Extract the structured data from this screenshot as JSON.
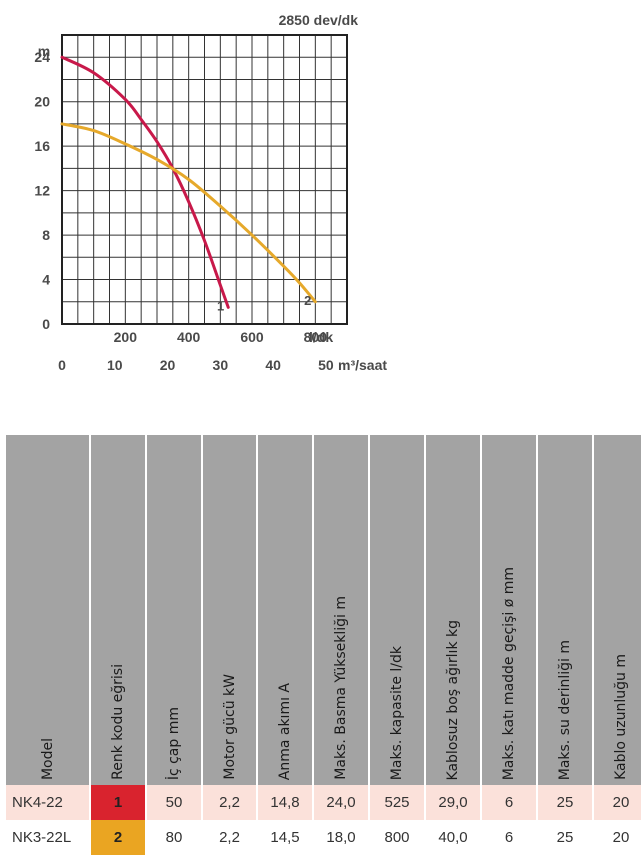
{
  "chart_data": {
    "type": "line",
    "title": "2850 dev/dk",
    "ylabel": "m",
    "xlabel_primary": "l/dk",
    "xlabel_secondary": "m³/saat",
    "ylim": [
      0,
      26
    ],
    "xlim": [
      0,
      900
    ],
    "yticks": [
      "0",
      "4",
      "8",
      "12",
      "16",
      "20",
      "24"
    ],
    "xticks_primary": [
      "200",
      "400",
      "600",
      "800"
    ],
    "xticks_secondary": [
      "0",
      "10",
      "20",
      "30",
      "40",
      "50"
    ],
    "grid": true,
    "series": [
      {
        "name": "1",
        "color": "#c8194a",
        "x": [
          0,
          100,
          200,
          250,
          300,
          350,
          400,
          450,
          500,
          525
        ],
        "y": [
          24.0,
          22.6,
          20.2,
          18.4,
          16.4,
          14.0,
          11.0,
          7.5,
          3.5,
          1.5
        ]
      },
      {
        "name": "2",
        "color": "#e6a92b",
        "x": [
          0,
          100,
          200,
          300,
          400,
          500,
          600,
          700,
          750,
          800
        ],
        "y": [
          18.0,
          17.4,
          16.2,
          14.8,
          13.0,
          10.6,
          8.0,
          5.2,
          3.7,
          2.0
        ]
      }
    ]
  },
  "table": {
    "headers": [
      "Model",
      "Renk kodu eğrisi",
      "İç çap mm",
      "Motor gücü kW",
      "Anma akımı A",
      "Maks. Basma Yüksekliği m",
      "Maks. kapasite l/dk",
      "Kablosuz boş ağırlık kg",
      "Maks. katı madde geçişi ø mm",
      "Maks. su derinliği m",
      "Kablo uzunluğu m"
    ],
    "rows": [
      {
        "model": "NK4-22",
        "code": "1",
        "code_color": "#d9232e",
        "ic_cap": "50",
        "motor": "2,2",
        "akim": "14,8",
        "basma": "24,0",
        "kapasite": "525",
        "agirlik": "29,0",
        "kati": "6",
        "derinlik": "25",
        "kablo": "20"
      },
      {
        "model": "NK3-22L",
        "code": "2",
        "code_color": "#eaa522",
        "ic_cap": "80",
        "motor": "2,2",
        "akim": "14,5",
        "basma": "18,0",
        "kapasite": "800",
        "agirlik": "40,0",
        "kati": "6",
        "derinlik": "25",
        "kablo": "20"
      }
    ]
  }
}
